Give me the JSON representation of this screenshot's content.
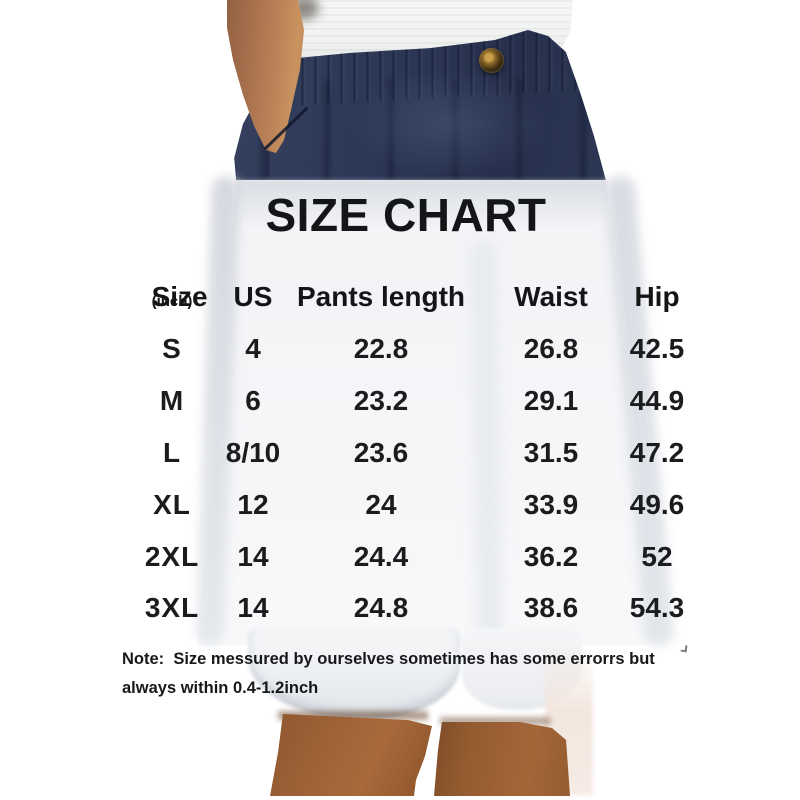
{
  "chart_data": {
    "type": "table",
    "title": "SIZE CHART",
    "columns": [
      "Size(inch)",
      "US",
      "Pants length",
      "Waist",
      "Hip"
    ],
    "rows": [
      [
        "S",
        "4",
        "22.8",
        "26.8",
        "42.5"
      ],
      [
        "M",
        "6",
        "23.2",
        "29.1",
        "44.9"
      ],
      [
        "L",
        "8/10",
        "23.6",
        "31.5",
        "47.2"
      ],
      [
        "XL",
        "12",
        "24",
        "33.9",
        "49.6"
      ],
      [
        "2XL",
        "14",
        "24.4",
        "36.2",
        "52"
      ],
      [
        "3XL",
        "14",
        "24.8",
        "38.6",
        "54.3"
      ]
    ],
    "note": "Note:  Size messured by ourselves sometimes has some errorrs but always within 0.4-1.2inch"
  },
  "note_lines": [
    "Note:  Size messured by ourselves sometimes has some errorrs but",
    "always within 0.4-1.2inch"
  ],
  "photo": {
    "description": "model wearing navy elastic-waist shorts with button, hand in pocket, white top, bare legs below hem",
    "colors": {
      "shorts_navy": "#2d3857",
      "shorts_navy_dark": "#26304c",
      "skin_arm": "#b07a55",
      "skin_leg": "#9d6236",
      "shirt_white": "#f2f3f1",
      "button_gold": "#caa04a",
      "button_brown": "#3a2b12",
      "washed_band_gray": "#dde0e6",
      "hem_light": "#eef0f3",
      "background": "#ffffff"
    }
  }
}
